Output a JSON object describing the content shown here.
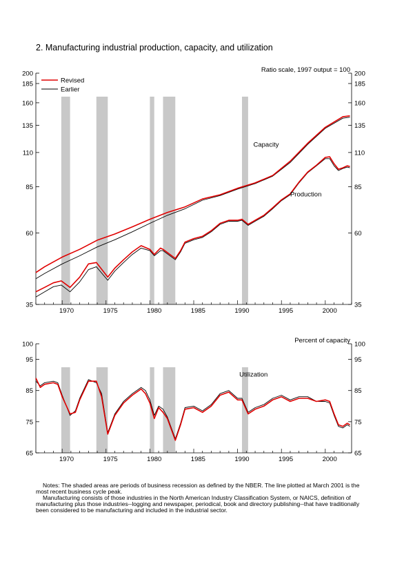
{
  "title": "2. Manufacturing industrial production, capacity, and utilization",
  "colors": {
    "revised": "#e00000",
    "earlier": "#000000",
    "recession": "#c8c8c8"
  },
  "notes": {
    "p1": "Notes: The shaded areas are periods of business recession as defined by the NBER. The line plotted at March 2001 is the most recent business cycle peak.",
    "p2": "Manufacturing consists of those industries in the North American Industry Classification System, or NAICS, definition of manufacturing plus those industries--logging and newspaper, periodical, book and directory publishing--that have traditionally been considered to be manufacturing and included in the industrial sector."
  },
  "chart_data": [
    {
      "type": "line",
      "unit_label": "Ratio scale, 1997 output = 100",
      "scale": "log",
      "ylim": [
        35,
        200
      ],
      "yticks": [
        35,
        60,
        85,
        110,
        135,
        160,
        185,
        200
      ],
      "xlim": [
        1967,
        2003
      ],
      "xticks": [
        1970,
        1975,
        1980,
        1985,
        1990,
        1995,
        2000
      ],
      "legend": {
        "position": "top-left",
        "entries": [
          "Revised",
          "Earlier"
        ]
      },
      "recessions": [
        [
          1969.9,
          1970.9
        ],
        [
          1973.9,
          1975.2
        ],
        [
          1980.0,
          1980.5
        ],
        [
          1981.5,
          1982.9
        ],
        [
          1990.5,
          1991.2
        ]
      ],
      "annotations": [
        "Capacity",
        "Production"
      ],
      "series": [
        {
          "name": "Revised",
          "group": "Capacity",
          "x": [
            1967,
            1968,
            1970,
            1972,
            1974,
            1976,
            1978,
            1980,
            1982,
            1984,
            1986,
            1988,
            1990,
            1992,
            1994,
            1996,
            1998,
            2000,
            2002,
            2002.8
          ],
          "values": [
            44.5,
            46.5,
            50.0,
            53.0,
            56.8,
            59.5,
            62.8,
            66.5,
            70.0,
            73.0,
            77.5,
            80.0,
            84.0,
            87.5,
            92.5,
            103.0,
            118.0,
            133.0,
            144.0,
            145.0
          ]
        },
        {
          "name": "Earlier",
          "group": "Capacity",
          "x": [
            1967,
            1968,
            1970,
            1972,
            1974,
            1976,
            1978,
            1980,
            1982,
            1984,
            1986,
            1988,
            1990,
            1992,
            1994,
            1996,
            1998,
            2000,
            2002,
            2002.8
          ],
          "values": [
            42.5,
            44.2,
            47.5,
            50.5,
            54.0,
            57.0,
            60.5,
            64.5,
            68.5,
            72.0,
            76.8,
            79.5,
            83.5,
            87.0,
            92.0,
            102.0,
            117.0,
            132.0,
            142.5,
            143.5
          ]
        },
        {
          "name": "Revised",
          "group": "Production",
          "x": [
            1967,
            1968,
            1969,
            1969.9,
            1970.9,
            1972,
            1973,
            1973.9,
            1975.2,
            1976,
            1977,
            1978,
            1979,
            1980,
            1980.5,
            1981.2,
            1981.5,
            1982.9,
            1983.5,
            1984,
            1985,
            1986,
            1987,
            1988,
            1989,
            1990,
            1990.5,
            1991.2,
            1992,
            1993,
            1994,
            1995,
            1996,
            1997,
            1998,
            1999,
            2000,
            2000.5,
            2001,
            2001.5,
            2002,
            2002.5,
            2002.8
          ],
          "values": [
            38.5,
            39.8,
            41.2,
            41.8,
            39.8,
            43.0,
            47.5,
            48.0,
            43.0,
            46.0,
            49.0,
            52.0,
            54.5,
            53.0,
            51.0,
            53.5,
            53.0,
            49.5,
            52.5,
            56.0,
            57.5,
            58.5,
            61.0,
            64.5,
            66.0,
            66.0,
            66.5,
            64.0,
            66.0,
            68.5,
            72.5,
            77.0,
            80.5,
            88.0,
            95.0,
            100.0,
            106.0,
            106.5,
            101.0,
            97.0,
            98.0,
            99.5,
            99.0
          ]
        },
        {
          "name": "Earlier",
          "group": "Production",
          "x": [
            1967,
            1968,
            1969,
            1969.9,
            1970.9,
            1972,
            1973,
            1973.9,
            1975.2,
            1976,
            1977,
            1978,
            1979,
            1980,
            1980.5,
            1981.2,
            1981.5,
            1982.9,
            1983.5,
            1984,
            1985,
            1986,
            1987,
            1988,
            1989,
            1990,
            1990.5,
            1991.2,
            1992,
            1993,
            1994,
            1995,
            1996,
            1997,
            1998,
            1999,
            2000,
            2000.5,
            2001,
            2001.5,
            2002,
            2002.5,
            2002.8
          ],
          "values": [
            37.0,
            38.5,
            40.0,
            40.5,
            38.5,
            41.5,
            45.5,
            46.5,
            42.0,
            45.0,
            48.0,
            51.0,
            53.5,
            52.5,
            50.5,
            52.5,
            52.5,
            49.0,
            52.0,
            55.5,
            57.0,
            58.0,
            60.5,
            64.0,
            65.5,
            65.5,
            66.0,
            63.5,
            65.5,
            68.0,
            72.0,
            76.5,
            80.0,
            87.5,
            94.5,
            99.5,
            105.0,
            105.0,
            99.5,
            96.0,
            97.5,
            98.5,
            98.0
          ]
        }
      ]
    },
    {
      "type": "line",
      "unit_label": "Percent of capacity",
      "ylim": [
        65,
        100
      ],
      "yticks": [
        65,
        75,
        85,
        95,
        100
      ],
      "xlim": [
        1967,
        2003
      ],
      "xticks": [
        1970,
        1975,
        1980,
        1985,
        1990,
        1995,
        2000
      ],
      "recessions": [
        [
          1969.9,
          1970.9
        ],
        [
          1973.9,
          1975.2
        ],
        [
          1980.0,
          1980.5
        ],
        [
          1981.5,
          1982.9
        ],
        [
          1990.5,
          1991.2
        ]
      ],
      "annotations": [
        "Utilization"
      ],
      "series": [
        {
          "name": "Revised",
          "x": [
            1967,
            1967.5,
            1968,
            1969,
            1969.5,
            1970,
            1970.9,
            1971.5,
            1972,
            1973,
            1973.9,
            1974.5,
            1975.2,
            1976,
            1977,
            1978,
            1979,
            1979.5,
            1980,
            1980.5,
            1981,
            1981.5,
            1982,
            1982.9,
            1983.5,
            1984,
            1985,
            1986,
            1987,
            1988,
            1989,
            1990,
            1990.5,
            1991.2,
            1992,
            1993,
            1994,
            1995,
            1996,
            1997,
            1998,
            1999,
            2000,
            2000.5,
            2001,
            2001.5,
            2002,
            2002.5,
            2002.8
          ],
          "values": [
            89,
            86,
            87,
            87.5,
            87,
            83,
            77.5,
            78,
            82,
            88,
            88,
            83,
            71,
            77,
            81,
            83.5,
            85.5,
            84,
            81,
            76,
            79.5,
            78,
            76,
            69,
            74,
            79,
            79.5,
            78,
            80,
            83.5,
            84.5,
            82,
            82,
            77.5,
            79,
            80,
            82,
            83,
            81.5,
            82.5,
            82.5,
            81.5,
            82,
            81.5,
            77.5,
            74,
            73.5,
            74.5,
            74
          ]
        },
        {
          "name": "Earlier",
          "x": [
            1967,
            1967.5,
            1968,
            1969,
            1969.5,
            1970,
            1970.9,
            1971.5,
            1972,
            1973,
            1973.9,
            1974.5,
            1975.2,
            1976,
            1977,
            1978,
            1979,
            1979.5,
            1980,
            1980.5,
            1981,
            1981.5,
            1982,
            1982.9,
            1983.5,
            1984,
            1985,
            1986,
            1987,
            1988,
            1989,
            1990,
            1990.5,
            1991.2,
            1992,
            1993,
            1994,
            1995,
            1996,
            1997,
            1998,
            1999,
            2000,
            2000.5,
            2001,
            2001.5,
            2002,
            2002.5,
            2002.8
          ],
          "values": [
            88,
            86.5,
            87.5,
            88,
            87.5,
            83.5,
            77,
            78.5,
            82.5,
            88.5,
            87.5,
            84,
            71.5,
            77.5,
            81.5,
            84,
            86,
            85,
            82,
            77,
            80,
            79,
            76.5,
            69.5,
            74.5,
            79.5,
            80,
            78.5,
            80.5,
            84,
            85,
            82.5,
            82.5,
            78,
            79.5,
            80.5,
            82.5,
            83.5,
            82,
            83,
            83,
            81.5,
            81.5,
            81,
            77,
            73.5,
            73,
            74,
            73.5
          ]
        }
      ]
    }
  ]
}
